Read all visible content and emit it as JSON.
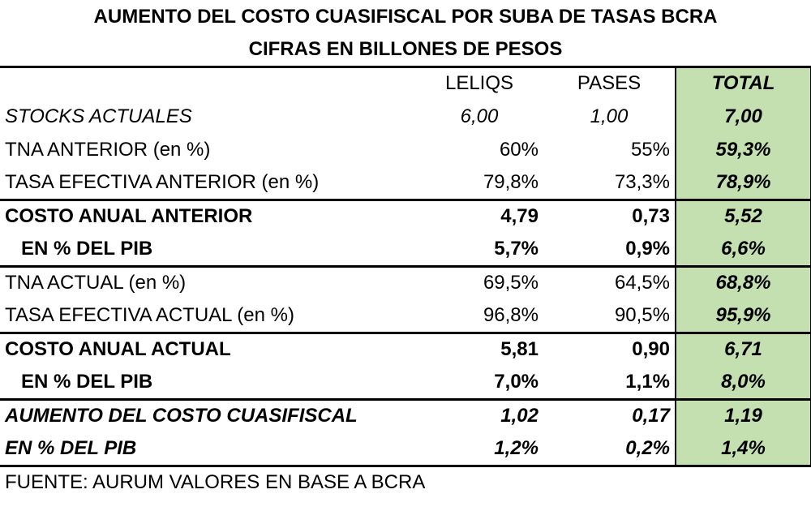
{
  "title": [
    "AUMENTO DEL COSTO CUASIFISCAL POR SUBA DE TASAS BCRA",
    "CIFRAS EN BILLONES DE PESOS"
  ],
  "header": [
    "LELIQS",
    "PASES",
    "TOTAL"
  ],
  "rows": [
    [
      "STOCKS ACTUALES",
      "6,00",
      "1,00",
      "7,00"
    ],
    [
      "TNA ANTERIOR (en %)",
      "60%",
      "55%",
      "59,3%"
    ],
    [
      "TASA EFECTIVA ANTERIOR (en %)",
      "79,8%",
      "73,3%",
      "78,9%"
    ],
    [
      "COSTO ANUAL ANTERIOR",
      "4,79",
      "0,73",
      "5,52"
    ],
    [
      "EN % DEL PIB",
      "5,7%",
      "0,9%",
      "6,6%"
    ],
    [
      "TNA ACTUAL (en %)",
      "69,5%",
      "64,5%",
      "68,8%"
    ],
    [
      "TASA EFECTIVA ACTUAL (en %)",
      "96,8%",
      "90,5%",
      "95,9%"
    ],
    [
      "COSTO ANUAL ACTUAL",
      "5,81",
      "0,90",
      "6,71"
    ],
    [
      "EN % DEL PIB",
      "7,0%",
      "1,1%",
      "8,0%"
    ],
    [
      "AUMENTO DEL COSTO CUASIFISCAL",
      "1,02",
      "0,17",
      "1,19"
    ],
    [
      "EN % DEL PIB",
      "1,2%",
      "0,2%",
      "1,4%"
    ]
  ],
  "source": "FUENTE: AURUM VALORES EN BASE A BCRA"
}
